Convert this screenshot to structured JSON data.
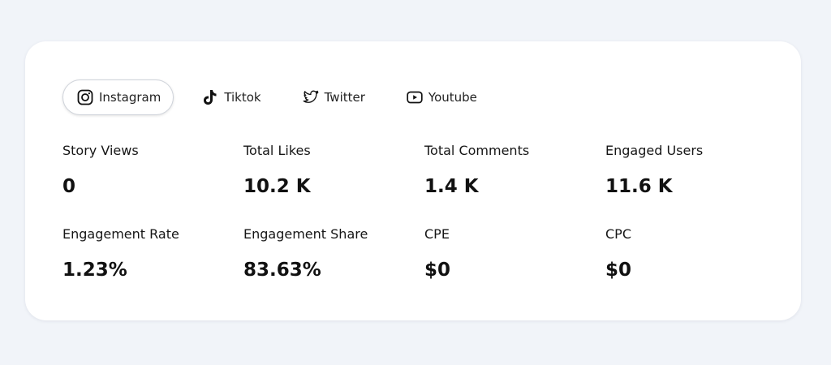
{
  "tabs": [
    {
      "label": "Instagram",
      "icon": "instagram-icon",
      "active": true
    },
    {
      "label": "Tiktok",
      "icon": "tiktok-icon",
      "active": false
    },
    {
      "label": "Twitter",
      "icon": "twitter-icon",
      "active": false
    },
    {
      "label": "Youtube",
      "icon": "youtube-icon",
      "active": false
    }
  ],
  "stats": [
    {
      "label": "Story Views",
      "value": "0"
    },
    {
      "label": "Total Likes",
      "value": "10.2 K"
    },
    {
      "label": "Total Comments",
      "value": "1.4 K"
    },
    {
      "label": "Engaged Users",
      "value": "11.6 K"
    },
    {
      "label": "Engagement Rate",
      "value": "1.23%"
    },
    {
      "label": "Engagement Share",
      "value": "83.63%"
    },
    {
      "label": "CPE",
      "value": "$0"
    },
    {
      "label": "CPC",
      "value": "$0"
    }
  ],
  "colors": {
    "background": "#f1f4f9",
    "card": "#ffffff",
    "text": "#111111",
    "active_tab_border": "#cfd3da"
  }
}
